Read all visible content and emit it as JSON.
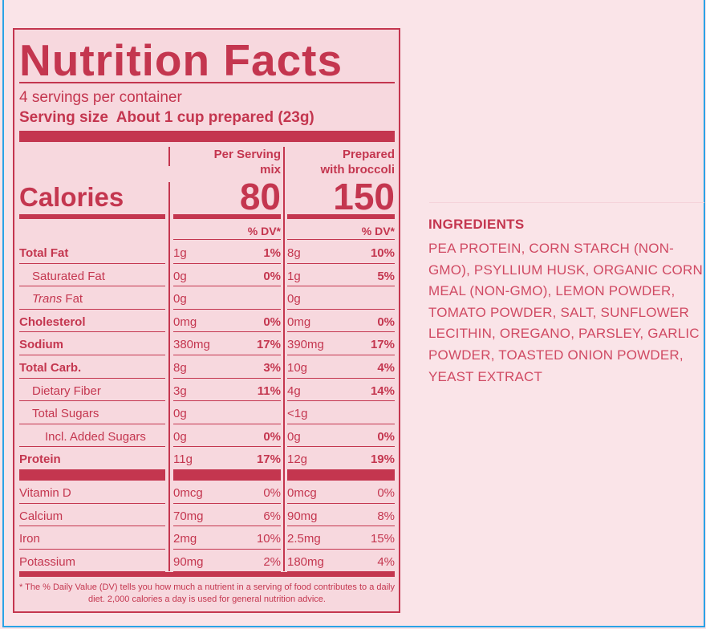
{
  "label": {
    "title": "Nutrition Facts",
    "servings": "4 servings per container",
    "serving_size": "Serving size  About 1 cup prepared (23g)",
    "col1_header": [
      "Per Serving",
      "mix"
    ],
    "col2_header": [
      "Prepared",
      "with broccoli"
    ],
    "calories_label": "Calories",
    "calories": [
      "80",
      "150"
    ],
    "dv_header": "% DV*",
    "nutrients": [
      {
        "name": "Total Fat",
        "style": "bold",
        "v1": "1g",
        "p1": "1%",
        "v2": "8g",
        "p2": "10%"
      },
      {
        "name": "Saturated Fat",
        "style": "indent",
        "v1": "0g",
        "p1": "0%",
        "v2": "1g",
        "p2": "5%"
      },
      {
        "name": "Trans Fat",
        "italic": "Trans",
        "style": "indent",
        "v1": "0g",
        "p1": "",
        "v2": "0g",
        "p2": ""
      },
      {
        "name": "Cholesterol",
        "style": "bold",
        "v1": "0mg",
        "p1": "0%",
        "v2": "0mg",
        "p2": "0%"
      },
      {
        "name": "Sodium",
        "style": "bold",
        "v1": "380mg",
        "p1": "17%",
        "v2": "390mg",
        "p2": "17%"
      },
      {
        "name": "Total Carb.",
        "style": "bold",
        "v1": "8g",
        "p1": "3%",
        "v2": "10g",
        "p2": "4%"
      },
      {
        "name": "Dietary Fiber",
        "style": "indent",
        "v1": "3g",
        "p1": "11%",
        "v2": "4g",
        "p2": "14%"
      },
      {
        "name": "Total Sugars",
        "style": "indent",
        "v1": "0g",
        "p1": "",
        "v2": "<1g",
        "p2": ""
      },
      {
        "name": "Incl. Added Sugars",
        "style": "indent2",
        "v1": "0g",
        "p1": "0%",
        "v2": "0g",
        "p2": "0%"
      },
      {
        "name": "Protein",
        "style": "bold",
        "v1": "11g",
        "p1": "17%",
        "v2": "12g",
        "p2": "19%"
      }
    ],
    "vitamins": [
      {
        "name": "Vitamin D",
        "v1": "0mcg",
        "p1": "0%",
        "v2": "0mcg",
        "p2": "0%"
      },
      {
        "name": "Calcium",
        "v1": "70mg",
        "p1": "6%",
        "v2": "90mg",
        "p2": "8%"
      },
      {
        "name": "Iron",
        "v1": "2mg",
        "p1": "10%",
        "v2": "2.5mg",
        "p2": "15%"
      },
      {
        "name": "Potassium",
        "v1": "90mg",
        "p1": "2%",
        "v2": "180mg",
        "p2": "4%"
      }
    ],
    "footnote": "* The % Daily Value (DV) tells you how much a nutrient in a serving of food contributes to a daily diet. 2,000 calories a day is used for general nutrition advice."
  },
  "ingredients": {
    "heading": "INGREDIENTS",
    "text": "PEA PROTEIN, CORN STARCH (NON-GMO), PSYLLIUM HUSK, ORGANIC CORN MEAL (NON-GMO), LEMON POWDER, TOMATO POWDER, SALT, SUNFLOWER LECITHIN, OREGANO, PARSLEY, GARLIC POWDER, TOASTED ONION POWDER, YEAST EXTRACT"
  },
  "colors": {
    "accent": "#c4364f",
    "background": "#fae4e8",
    "label_bg": "#f7d8de",
    "frame": "#2aa3e6"
  }
}
